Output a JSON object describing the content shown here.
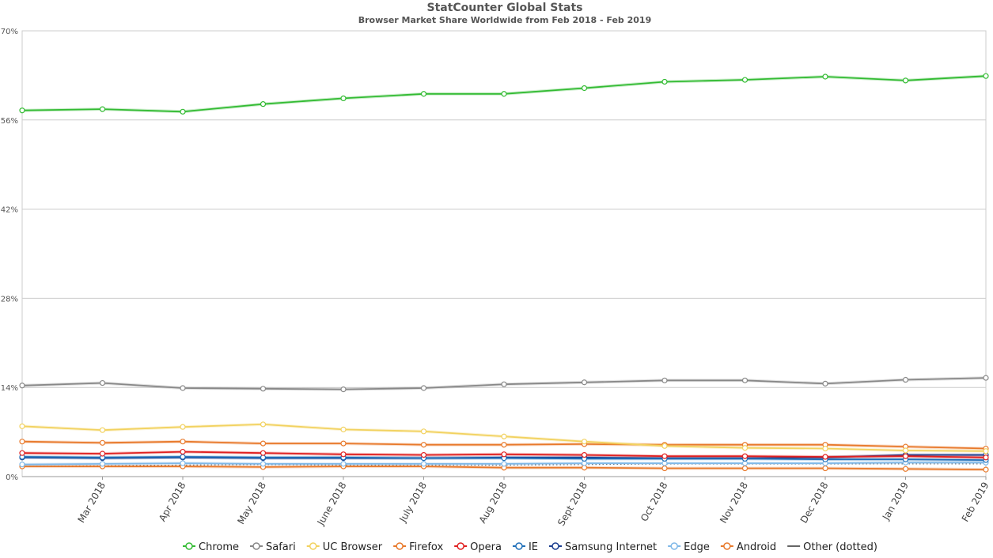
{
  "chart_data": {
    "type": "line",
    "title": "StatCounter Global Stats",
    "subtitle": "Browser Market Share Worldwide from Feb 2018 - Feb 2019",
    "ylim": [
      0,
      70
    ],
    "y_ticks": [
      "0%",
      "14%",
      "28%",
      "42%",
      "56%",
      "70%"
    ],
    "grid": true,
    "legend_position": "bottom",
    "categories": [
      "Feb 2018",
      "Mar 2018",
      "Apr 2018",
      "May 2018",
      "June 2018",
      "July 2018",
      "Aug 2018",
      "Sept 2018",
      "Oct 2018",
      "Nov 2018",
      "Dec 2018",
      "Jan 2019",
      "Feb 2019"
    ],
    "x_tick_labels": [
      "Mar 2018",
      "Apr 2018",
      "May 2018",
      "June 2018",
      "July 2018",
      "Aug 2018",
      "Sept 2018",
      "Oct 2018",
      "Nov 2018",
      "Dec 2018",
      "Jan 2019",
      "Feb 2019"
    ],
    "series": [
      {
        "name": "Chrome",
        "color": "#33bb33",
        "values": [
          57.5,
          57.7,
          57.3,
          58.5,
          59.4,
          60.1,
          60.1,
          61.0,
          62.0,
          62.3,
          62.8,
          62.2,
          62.9
        ]
      },
      {
        "name": "Safari",
        "color": "#888888",
        "values": [
          14.3,
          14.7,
          13.9,
          13.8,
          13.7,
          13.9,
          14.5,
          14.8,
          15.1,
          15.1,
          14.6,
          15.2,
          15.5
        ]
      },
      {
        "name": "UC Browser",
        "color": "#f2d260",
        "values": [
          7.9,
          7.3,
          7.8,
          8.2,
          7.4,
          7.1,
          6.3,
          5.5,
          4.8,
          4.5,
          4.4,
          4.1,
          4.0
        ]
      },
      {
        "name": "Firefox",
        "color": "#e8792b",
        "values": [
          5.5,
          5.3,
          5.5,
          5.2,
          5.2,
          5.0,
          5.0,
          5.1,
          5.0,
          5.0,
          5.0,
          4.7,
          4.4
        ]
      },
      {
        "name": "Opera",
        "color": "#e02020",
        "values": [
          3.7,
          3.6,
          3.9,
          3.7,
          3.5,
          3.4,
          3.5,
          3.4,
          3.2,
          3.2,
          3.1,
          3.2,
          3.0
        ]
      },
      {
        "name": "IE",
        "color": "#1f6fb8",
        "values": [
          3.1,
          3.0,
          3.1,
          3.0,
          3.0,
          2.9,
          2.9,
          2.8,
          2.8,
          2.8,
          2.7,
          2.7,
          2.6
        ]
      },
      {
        "name": "Samsung Internet",
        "color": "#1a3d8f",
        "values": [
          3.0,
          2.9,
          3.0,
          2.9,
          2.9,
          2.9,
          3.0,
          3.0,
          2.9,
          2.9,
          3.0,
          3.4,
          3.4
        ]
      },
      {
        "name": "Edge",
        "color": "#7fb8e8",
        "values": [
          1.9,
          2.0,
          2.1,
          2.0,
          2.0,
          2.0,
          2.0,
          2.1,
          2.1,
          2.1,
          2.1,
          2.2,
          2.2
        ]
      },
      {
        "name": "Android",
        "color": "#e8792b",
        "values": [
          1.6,
          1.6,
          1.6,
          1.5,
          1.6,
          1.6,
          1.4,
          1.4,
          1.3,
          1.3,
          1.3,
          1.2,
          1.1
        ]
      },
      {
        "name": "Other (dotted)",
        "color": "#666666",
        "dotted": true,
        "values": [
          1.6,
          1.7,
          1.8,
          1.9,
          1.8,
          1.8,
          1.8,
          1.9,
          2.0,
          2.0,
          2.0,
          2.0,
          2.0
        ]
      }
    ]
  }
}
